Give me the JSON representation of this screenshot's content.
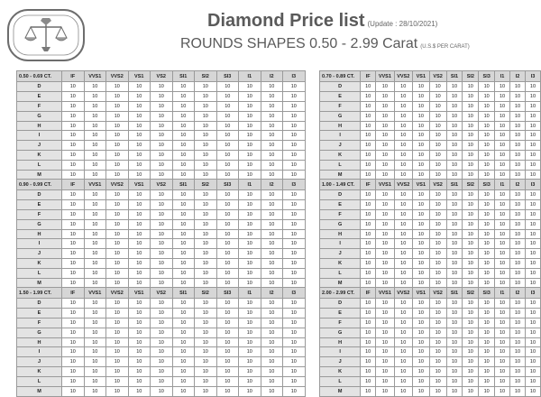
{
  "header": {
    "title": "Diamond Price list",
    "update": "(Update : 28/10/2021)",
    "subtitle": "ROUNDS SHAPES 0.50 - 2.99 Carat",
    "subnote": "(U.S.$ PER CARAT)"
  },
  "columns": [
    "IF",
    "VVS1",
    "VVS2",
    "VS1",
    "VS2",
    "SI1",
    "SI2",
    "SI3",
    "I1",
    "I2",
    "I3"
  ],
  "colors": [
    "D",
    "E",
    "F",
    "G",
    "H",
    "I",
    "J",
    "K",
    "L",
    "M"
  ],
  "blocks": [
    {
      "label": "0.50 - 0.69 CT.",
      "rows": [
        [
          "10",
          "10",
          "10",
          "10",
          "10",
          "10",
          "10",
          "10",
          "10",
          "10",
          "10"
        ],
        [
          "10",
          "10",
          "10",
          "10",
          "10",
          "10",
          "10",
          "10",
          "10",
          "10",
          "10"
        ],
        [
          "10",
          "10",
          "10",
          "10",
          "10",
          "10",
          "10",
          "10",
          "10",
          "10",
          "10"
        ],
        [
          "10",
          "10",
          "10",
          "10",
          "10",
          "10",
          "10",
          "10",
          "10",
          "10",
          "10"
        ],
        [
          "10",
          "10",
          "10",
          "10",
          "10",
          "10",
          "10",
          "10",
          "10",
          "10",
          "10"
        ],
        [
          "10",
          "10",
          "10",
          "10",
          "10",
          "10",
          "10",
          "10",
          "10",
          "10",
          "10"
        ],
        [
          "10",
          "10",
          "10",
          "10",
          "10",
          "10",
          "10",
          "10",
          "10",
          "10",
          "10"
        ],
        [
          "10",
          "10",
          "10",
          "10",
          "10",
          "10",
          "10",
          "10",
          "10",
          "10",
          "10"
        ],
        [
          "10",
          "10",
          "10",
          "10",
          "10",
          "10",
          "10",
          "10",
          "10",
          "10",
          "10"
        ],
        [
          "10",
          "10",
          "10",
          "10",
          "10",
          "10",
          "10",
          "10",
          "10",
          "10",
          "10"
        ]
      ]
    },
    {
      "label": "0.70 - 0.89 CT.",
      "rows": [
        [
          "10",
          "10",
          "10",
          "10",
          "10",
          "10",
          "10",
          "10",
          "10",
          "10",
          "10"
        ],
        [
          "10",
          "10",
          "10",
          "10",
          "10",
          "10",
          "10",
          "10",
          "10",
          "10",
          "10"
        ],
        [
          "10",
          "10",
          "10",
          "10",
          "10",
          "10",
          "10",
          "10",
          "10",
          "10",
          "10"
        ],
        [
          "10",
          "10",
          "10",
          "10",
          "10",
          "10",
          "10",
          "10",
          "10",
          "10",
          "10"
        ],
        [
          "10",
          "10",
          "10",
          "10",
          "10",
          "10",
          "10",
          "10",
          "10",
          "10",
          "10"
        ],
        [
          "10",
          "10",
          "10",
          "10",
          "10",
          "10",
          "10",
          "10",
          "10",
          "10",
          "10"
        ],
        [
          "10",
          "10",
          "10",
          "10",
          "10",
          "10",
          "10",
          "10",
          "10",
          "10",
          "10"
        ],
        [
          "10",
          "10",
          "10",
          "10",
          "10",
          "10",
          "10",
          "10",
          "10",
          "10",
          "10"
        ],
        [
          "10",
          "10",
          "10",
          "10",
          "10",
          "10",
          "10",
          "10",
          "10",
          "10",
          "10"
        ],
        [
          "10",
          "10",
          "10",
          "10",
          "10",
          "10",
          "10",
          "10",
          "10",
          "10",
          "10"
        ]
      ]
    },
    {
      "label": "0.90 - 0.99 CT.",
      "rows": [
        [
          "10",
          "10",
          "10",
          "10",
          "10",
          "10",
          "10",
          "10",
          "10",
          "10",
          "10"
        ],
        [
          "10",
          "10",
          "10",
          "10",
          "10",
          "10",
          "10",
          "10",
          "10",
          "10",
          "10"
        ],
        [
          "10",
          "10",
          "10",
          "10",
          "10",
          "10",
          "10",
          "10",
          "10",
          "10",
          "10"
        ],
        [
          "10",
          "10",
          "10",
          "10",
          "10",
          "10",
          "10",
          "10",
          "10",
          "10",
          "10"
        ],
        [
          "10",
          "10",
          "10",
          "10",
          "10",
          "10",
          "10",
          "10",
          "10",
          "10",
          "10"
        ],
        [
          "10",
          "10",
          "10",
          "10",
          "10",
          "10",
          "10",
          "10",
          "10",
          "10",
          "10"
        ],
        [
          "10",
          "10",
          "10",
          "10",
          "10",
          "10",
          "10",
          "10",
          "10",
          "10",
          "10"
        ],
        [
          "10",
          "10",
          "10",
          "10",
          "10",
          "10",
          "10",
          "10",
          "10",
          "10",
          "10"
        ],
        [
          "10",
          "10",
          "10",
          "10",
          "10",
          "10",
          "10",
          "10",
          "10",
          "10",
          "10"
        ],
        [
          "10",
          "10",
          "10",
          "10",
          "10",
          "10",
          "10",
          "10",
          "10",
          "10",
          "10"
        ]
      ]
    },
    {
      "label": "1.00 - 1.49 CT.",
      "rows": [
        [
          "10",
          "10",
          "10",
          "10",
          "10",
          "10",
          "10",
          "10",
          "10",
          "10",
          "10"
        ],
        [
          "10",
          "10",
          "10",
          "10",
          "10",
          "10",
          "10",
          "10",
          "10",
          "10",
          "10"
        ],
        [
          "10",
          "10",
          "10",
          "10",
          "10",
          "10",
          "10",
          "10",
          "10",
          "10",
          "10"
        ],
        [
          "10",
          "10",
          "10",
          "10",
          "10",
          "10",
          "10",
          "10",
          "10",
          "10",
          "10"
        ],
        [
          "10",
          "10",
          "10",
          "10",
          "10",
          "10",
          "10",
          "10",
          "10",
          "10",
          "10"
        ],
        [
          "10",
          "10",
          "10",
          "10",
          "10",
          "10",
          "10",
          "10",
          "10",
          "10",
          "10"
        ],
        [
          "10",
          "10",
          "10",
          "10",
          "10",
          "10",
          "10",
          "10",
          "10",
          "10",
          "10"
        ],
        [
          "10",
          "10",
          "10",
          "10",
          "10",
          "10",
          "10",
          "10",
          "10",
          "10",
          "10"
        ],
        [
          "10",
          "10",
          "10",
          "10",
          "10",
          "10",
          "10",
          "10",
          "10",
          "10",
          "10"
        ],
        [
          "10",
          "10",
          "10",
          "10",
          "10",
          "10",
          "10",
          "10",
          "10",
          "10",
          "10"
        ]
      ]
    },
    {
      "label": "1.50 - 1.99 CT.",
      "rows": [
        [
          "10",
          "10",
          "10",
          "10",
          "10",
          "10",
          "10",
          "10",
          "10",
          "10",
          "10"
        ],
        [
          "10",
          "10",
          "10",
          "10",
          "10",
          "10",
          "10",
          "10",
          "10",
          "10",
          "10"
        ],
        [
          "10",
          "10",
          "10",
          "10",
          "10",
          "10",
          "10",
          "10",
          "10",
          "10",
          "10"
        ],
        [
          "10",
          "10",
          "10",
          "10",
          "10",
          "10",
          "10",
          "10",
          "10",
          "10",
          "10"
        ],
        [
          "10",
          "10",
          "10",
          "10",
          "10",
          "10",
          "10",
          "10",
          "10",
          "10",
          "10"
        ],
        [
          "10",
          "10",
          "10",
          "10",
          "10",
          "10",
          "10",
          "10",
          "10",
          "10",
          "10"
        ],
        [
          "10",
          "10",
          "10",
          "10",
          "10",
          "10",
          "10",
          "10",
          "10",
          "10",
          "10"
        ],
        [
          "10",
          "10",
          "10",
          "10",
          "10",
          "10",
          "10",
          "10",
          "10",
          "10",
          "10"
        ],
        [
          "10",
          "10",
          "10",
          "10",
          "10",
          "10",
          "10",
          "10",
          "10",
          "10",
          "10"
        ],
        [
          "10",
          "10",
          "10",
          "10",
          "10",
          "10",
          "10",
          "10",
          "10",
          "10",
          "10"
        ]
      ]
    },
    {
      "label": "2.00 - 2.99 CT.",
      "rows": [
        [
          "10",
          "10",
          "10",
          "10",
          "10",
          "10",
          "10",
          "10",
          "10",
          "10",
          "10"
        ],
        [
          "10",
          "10",
          "10",
          "10",
          "10",
          "10",
          "10",
          "10",
          "10",
          "10",
          "10"
        ],
        [
          "10",
          "10",
          "10",
          "10",
          "10",
          "10",
          "10",
          "10",
          "10",
          "10",
          "10"
        ],
        [
          "10",
          "10",
          "10",
          "10",
          "10",
          "10",
          "10",
          "10",
          "10",
          "10",
          "10"
        ],
        [
          "10",
          "10",
          "10",
          "10",
          "10",
          "10",
          "10",
          "10",
          "10",
          "10",
          "10"
        ],
        [
          "10",
          "10",
          "10",
          "10",
          "10",
          "10",
          "10",
          "10",
          "10",
          "10",
          "10"
        ],
        [
          "10",
          "10",
          "10",
          "10",
          "10",
          "10",
          "10",
          "10",
          "10",
          "10",
          "10"
        ],
        [
          "10",
          "10",
          "10",
          "10",
          "10",
          "10",
          "10",
          "10",
          "10",
          "10",
          "10"
        ],
        [
          "10",
          "10",
          "10",
          "10",
          "10",
          "10",
          "10",
          "10",
          "10",
          "10",
          "10"
        ],
        [
          "10",
          "10",
          "10",
          "10",
          "10",
          "10",
          "10",
          "10",
          "10",
          "10",
          "10"
        ]
      ]
    }
  ]
}
